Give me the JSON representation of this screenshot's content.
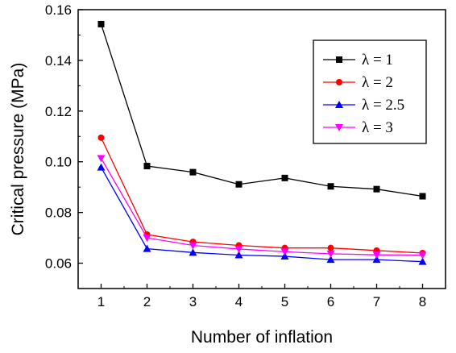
{
  "chart_data": {
    "type": "line",
    "xlabel": "Number of inflation",
    "ylabel": "Critical pressure (MPa)",
    "x": [
      1,
      2,
      3,
      4,
      5,
      6,
      7,
      8
    ],
    "xlim": [
      0.5,
      8.5
    ],
    "ylim": [
      0.05,
      0.16
    ],
    "xticks": [
      "1",
      "2",
      "3",
      "4",
      "5",
      "6",
      "7",
      "8"
    ],
    "yticks": [
      "0.06",
      "0.08",
      "0.10",
      "0.12",
      "0.14",
      "0.16"
    ],
    "grid": false,
    "legend_position": "top-right",
    "series": [
      {
        "name": "λ = 1",
        "color": "#000000",
        "marker": "square",
        "values": [
          0.1543,
          0.0983,
          0.0959,
          0.0911,
          0.0936,
          0.0903,
          0.0892,
          0.0864
        ]
      },
      {
        "name": "λ = 2",
        "color": "#ff0000",
        "marker": "circle",
        "values": [
          0.1095,
          0.0713,
          0.0684,
          0.067,
          0.066,
          0.066,
          0.065,
          0.064
        ]
      },
      {
        "name": "λ = 2.5",
        "color": "#0000ff",
        "marker": "triangle-up",
        "values": [
          0.0978,
          0.0657,
          0.0642,
          0.0632,
          0.0627,
          0.0614,
          0.0614,
          0.0606
        ]
      },
      {
        "name": "λ = 3",
        "color": "#ff00ff",
        "marker": "triangle-down",
        "values": [
          0.1014,
          0.07,
          0.067,
          0.0656,
          0.0645,
          0.0637,
          0.0633,
          0.0632
        ]
      }
    ]
  }
}
